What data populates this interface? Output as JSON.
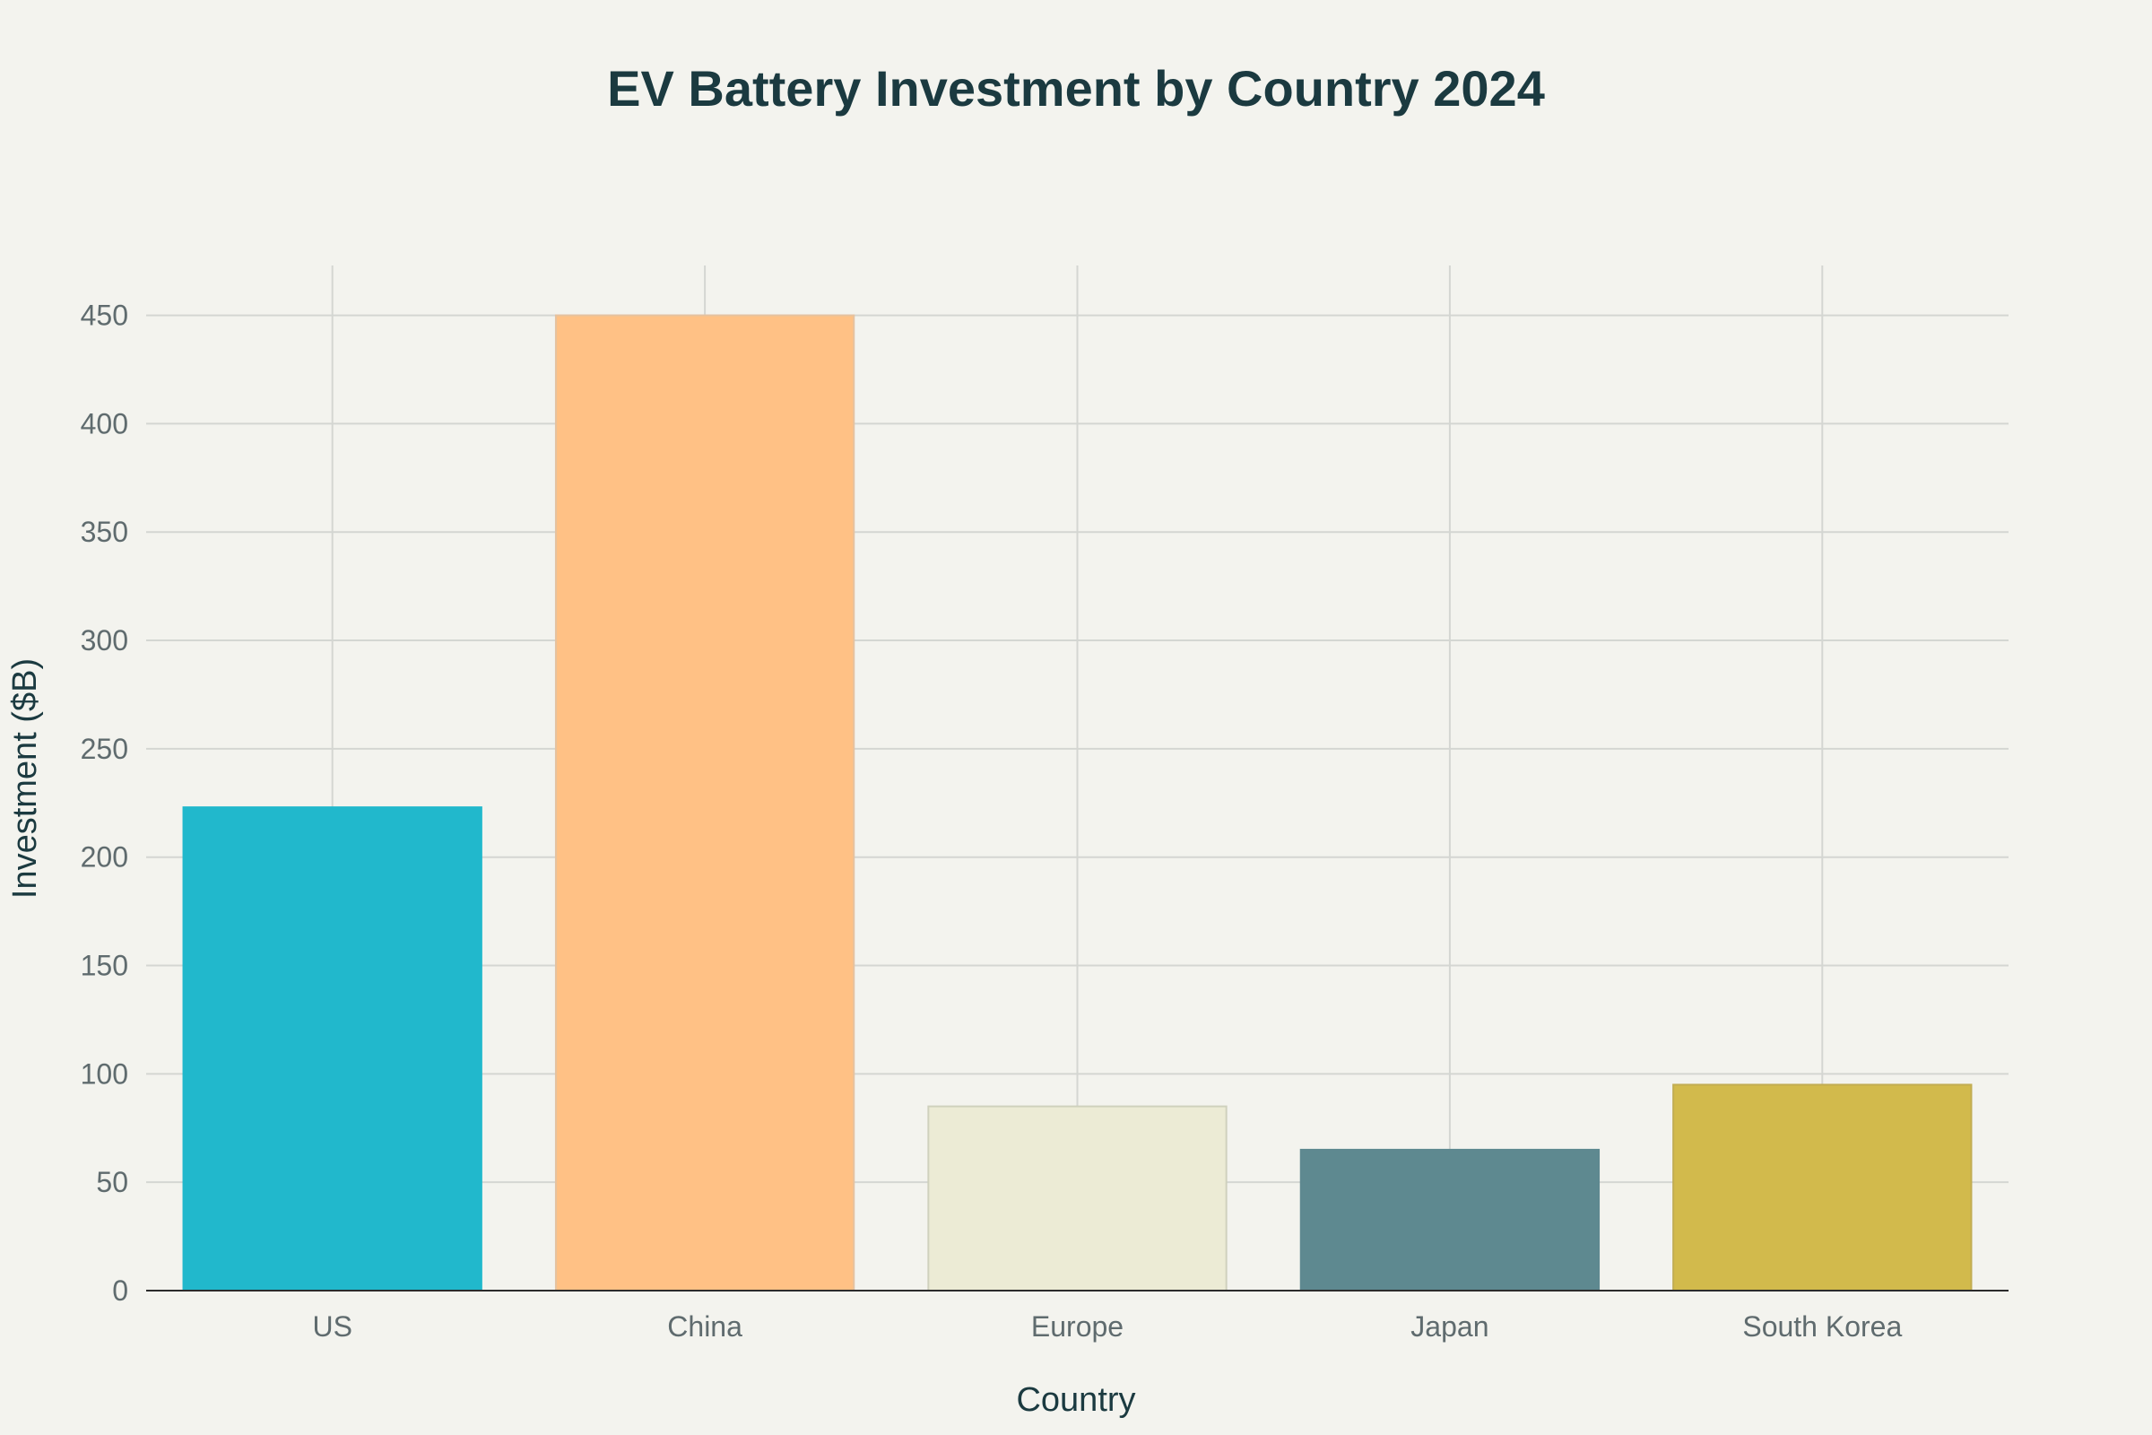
{
  "chart_data": {
    "type": "bar",
    "title": "EV Battery Investment by Country 2024",
    "xlabel": "Country",
    "ylabel": "Investment ($B)",
    "categories": [
      "US",
      "China",
      "Europe",
      "Japan",
      "South Korea"
    ],
    "values": [
      223,
      450,
      85,
      65,
      95
    ],
    "ylim": [
      0,
      473
    ],
    "yticks": [
      0,
      50,
      100,
      150,
      200,
      250,
      300,
      350,
      400,
      450
    ],
    "grid": true,
    "legend": "none",
    "colors": [
      "#21b8cc",
      "#ffc185",
      "#ecebd5",
      "#5e8990",
      "#d2ba4c"
    ],
    "bar_borders": [
      "#21b8cc",
      "#e5c2a0",
      "#cfd1bd",
      "#5e8990",
      "#c2ad52"
    ],
    "background": "#f3f3ee"
  }
}
